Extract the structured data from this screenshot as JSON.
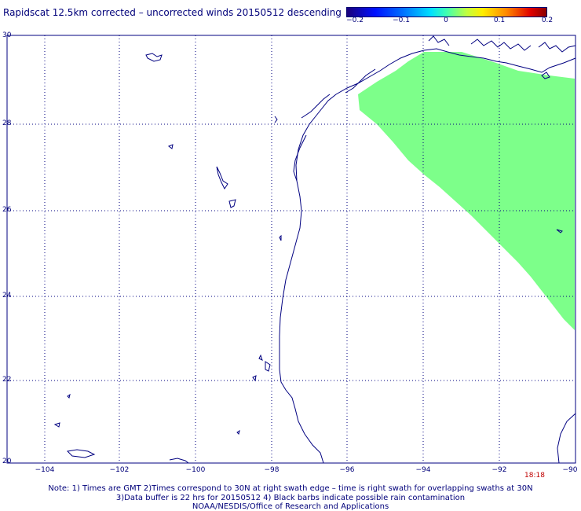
{
  "title": "Rapidscat 12.5km corrected – uncorrected winds 20150512 descending",
  "colorbar": {
    "ticks": [
      "−0.2",
      "−0.1",
      "0",
      "0.1",
      "0.2"
    ]
  },
  "lat_labels": [
    "30",
    "28",
    "26",
    "24",
    "22",
    "20"
  ],
  "lon_labels": [
    "−104",
    "−102",
    "−100",
    "−98",
    "−96",
    "−94",
    "−92",
    "−90"
  ],
  "swath_time": "18:18",
  "notes": {
    "line1": "Note: 1) Times are GMT 2)Times correspond to 30N at right swath edge – time is right swath for overlapping swaths at 30N",
    "line2": "3)Data buffer is 22 hrs for 20150512 4) Black barbs indicate possible rain contamination",
    "line3": "NOAA/NESDIS/Office of Research and Applications"
  },
  "colors": {
    "swath": "#7dff8a",
    "coast": "#000080",
    "grid": "#000080"
  }
}
